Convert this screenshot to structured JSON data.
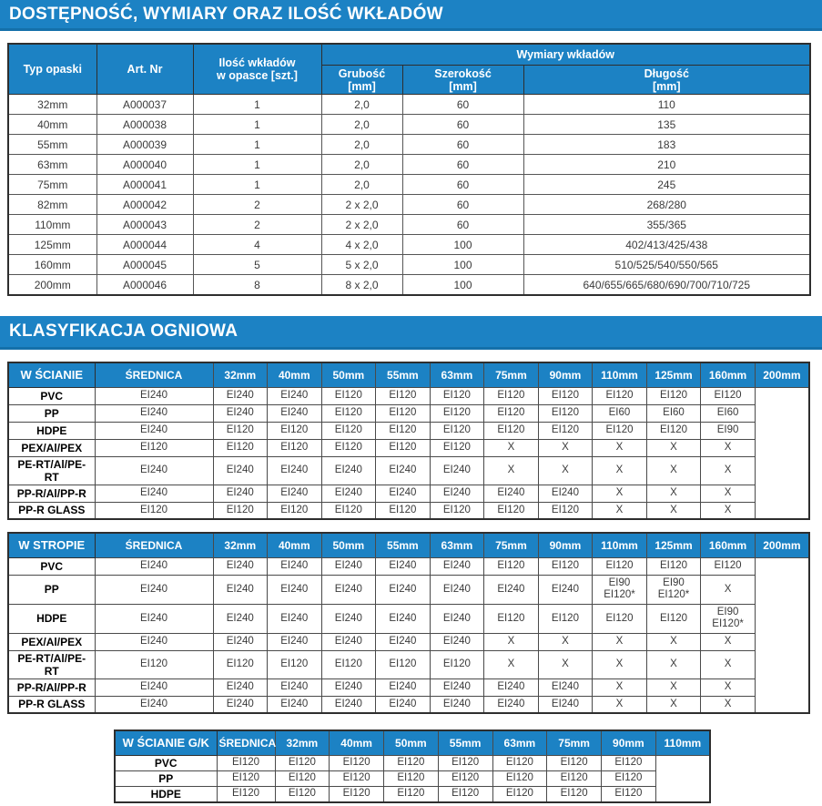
{
  "colors": {
    "accent": "#1C82C4",
    "accent_dark": "#1470AA",
    "border_dark": "#2E2E2E",
    "text": "#3A3A3A"
  },
  "section_availability": {
    "title": "DOSTĘPNOŚĆ, WYMIARY ORAZ ILOŚĆ WKŁADÓW",
    "table": {
      "headers": {
        "typ_opaski": "Typ opaski",
        "art_nr": "Art. Nr",
        "ilosc_wkladow": "Ilość wkładów\nw opasce [szt.]",
        "wymiary_wkladow": "Wymiary wkładów",
        "grubosc": "Grubość\n[mm]",
        "szerokosc": "Szerokość\n[mm]",
        "dlugosc": "Długość\n[mm]"
      },
      "rows": [
        [
          "32mm",
          "A000037",
          "1",
          "2,0",
          "60",
          "110"
        ],
        [
          "40mm",
          "A000038",
          "1",
          "2,0",
          "60",
          "135"
        ],
        [
          "55mm",
          "A000039",
          "1",
          "2,0",
          "60",
          "183"
        ],
        [
          "63mm",
          "A000040",
          "1",
          "2,0",
          "60",
          "210"
        ],
        [
          "75mm",
          "A000041",
          "1",
          "2,0",
          "60",
          "245"
        ],
        [
          "82mm",
          "A000042",
          "2",
          "2 x 2,0",
          "60",
          "268/280"
        ],
        [
          "110mm",
          "A000043",
          "2",
          "2 x 2,0",
          "60",
          "355/365"
        ],
        [
          "125mm",
          "A000044",
          "4",
          "4 x 2,0",
          "100",
          "402/413/425/438"
        ],
        [
          "160mm",
          "A000045",
          "5",
          "5 x 2,0",
          "100",
          "510/525/540/550/565"
        ],
        [
          "200mm",
          "A000046",
          "8",
          "8 x 2,0",
          "100",
          "640/655/665/680/690/700/710/725"
        ]
      ]
    }
  },
  "section_fire": {
    "title": "KLASYFIKACJA OGNIOWA",
    "tables": [
      {
        "label": "W ŚCIANIE",
        "header": [
          "ŚREDNICA",
          "32mm",
          "40mm",
          "50mm",
          "55mm",
          "63mm",
          "75mm",
          "90mm",
          "110mm",
          "125mm",
          "160mm",
          "200mm"
        ],
        "rows": [
          {
            "name": "PVC",
            "values": [
              "EI240",
              "EI240",
              "EI240",
              "EI120",
              "EI120",
              "EI120",
              "EI120",
              "EI120",
              "EI120",
              "EI120",
              "EI120"
            ]
          },
          {
            "name": "PP",
            "values": [
              "EI240",
              "EI240",
              "EI240",
              "EI120",
              "EI120",
              "EI120",
              "EI120",
              "EI120",
              "EI60",
              "EI60",
              "EI60"
            ]
          },
          {
            "name": "HDPE",
            "values": [
              "EI240",
              "EI120",
              "EI120",
              "EI120",
              "EI120",
              "EI120",
              "EI120",
              "EI120",
              "EI120",
              "EI120",
              "EI90"
            ]
          },
          {
            "name": "PEX/Al/PEX",
            "values": [
              "EI120",
              "EI120",
              "EI120",
              "EI120",
              "EI120",
              "EI120",
              "X",
              "X",
              "X",
              "X",
              "X"
            ]
          },
          {
            "name": "PE-RT/Al/PE-RT",
            "values": [
              "EI240",
              "EI240",
              "EI240",
              "EI240",
              "EI240",
              "EI240",
              "X",
              "X",
              "X",
              "X",
              "X"
            ]
          },
          {
            "name": "PP-R/Al/PP-R",
            "values": [
              "EI240",
              "EI240",
              "EI240",
              "EI240",
              "EI240",
              "EI240",
              "EI240",
              "EI240",
              "X",
              "X",
              "X"
            ]
          },
          {
            "name": "PP-R GLASS",
            "values": [
              "EI120",
              "EI120",
              "EI120",
              "EI120",
              "EI120",
              "EI120",
              "EI120",
              "EI120",
              "X",
              "X",
              "X"
            ]
          }
        ]
      },
      {
        "label": "W STROPIE",
        "header": [
          "ŚREDNICA",
          "32mm",
          "40mm",
          "50mm",
          "55mm",
          "63mm",
          "75mm",
          "90mm",
          "110mm",
          "125mm",
          "160mm",
          "200mm"
        ],
        "rows": [
          {
            "name": "PVC",
            "values": [
              "EI240",
              "EI240",
              "EI240",
              "EI240",
              "EI240",
              "EI240",
              "EI120",
              "EI120",
              "EI120",
              "EI120",
              "EI120"
            ]
          },
          {
            "name": "PP",
            "values": [
              "EI240",
              "EI240",
              "EI240",
              "EI240",
              "EI240",
              "EI240",
              "EI240",
              "EI240",
              "EI90\nEI120*",
              "EI90\nEI120*",
              "X"
            ],
            "tall": true
          },
          {
            "name": "HDPE",
            "values": [
              "EI240",
              "EI240",
              "EI240",
              "EI240",
              "EI240",
              "EI240",
              "EI120",
              "EI120",
              "EI120",
              "EI120",
              "EI90\nEI120*"
            ],
            "tall": true
          },
          {
            "name": "PEX/Al/PEX",
            "values": [
              "EI240",
              "EI240",
              "EI240",
              "EI240",
              "EI240",
              "EI240",
              "X",
              "X",
              "X",
              "X",
              "X"
            ]
          },
          {
            "name": "PE-RT/Al/PE-RT",
            "values": [
              "EI120",
              "EI120",
              "EI120",
              "EI120",
              "EI120",
              "EI120",
              "X",
              "X",
              "X",
              "X",
              "X"
            ]
          },
          {
            "name": "PP-R/Al/PP-R",
            "values": [
              "EI240",
              "EI240",
              "EI240",
              "EI240",
              "EI240",
              "EI240",
              "EI240",
              "EI240",
              "X",
              "X",
              "X"
            ]
          },
          {
            "name": "PP-R GLASS",
            "values": [
              "EI240",
              "EI240",
              "EI240",
              "EI240",
              "EI240",
              "EI240",
              "EI240",
              "EI240",
              "X",
              "X",
              "X"
            ]
          }
        ]
      },
      {
        "label": "W ŚCIANIE G/K",
        "header": [
          "ŚREDNICA",
          "32mm",
          "40mm",
          "50mm",
          "55mm",
          "63mm",
          "75mm",
          "90mm",
          "110mm"
        ],
        "rows": [
          {
            "name": "PVC",
            "values": [
              "EI120",
              "EI120",
              "EI120",
              "EI120",
              "EI120",
              "EI120",
              "EI120",
              "EI120"
            ]
          },
          {
            "name": "PP",
            "values": [
              "EI120",
              "EI120",
              "EI120",
              "EI120",
              "EI120",
              "EI120",
              "EI120",
              "EI120"
            ]
          },
          {
            "name": "HDPE",
            "values": [
              "EI120",
              "EI120",
              "EI120",
              "EI120",
              "EI120",
              "EI120",
              "EI120",
              "EI120"
            ]
          }
        ]
      }
    ]
  }
}
